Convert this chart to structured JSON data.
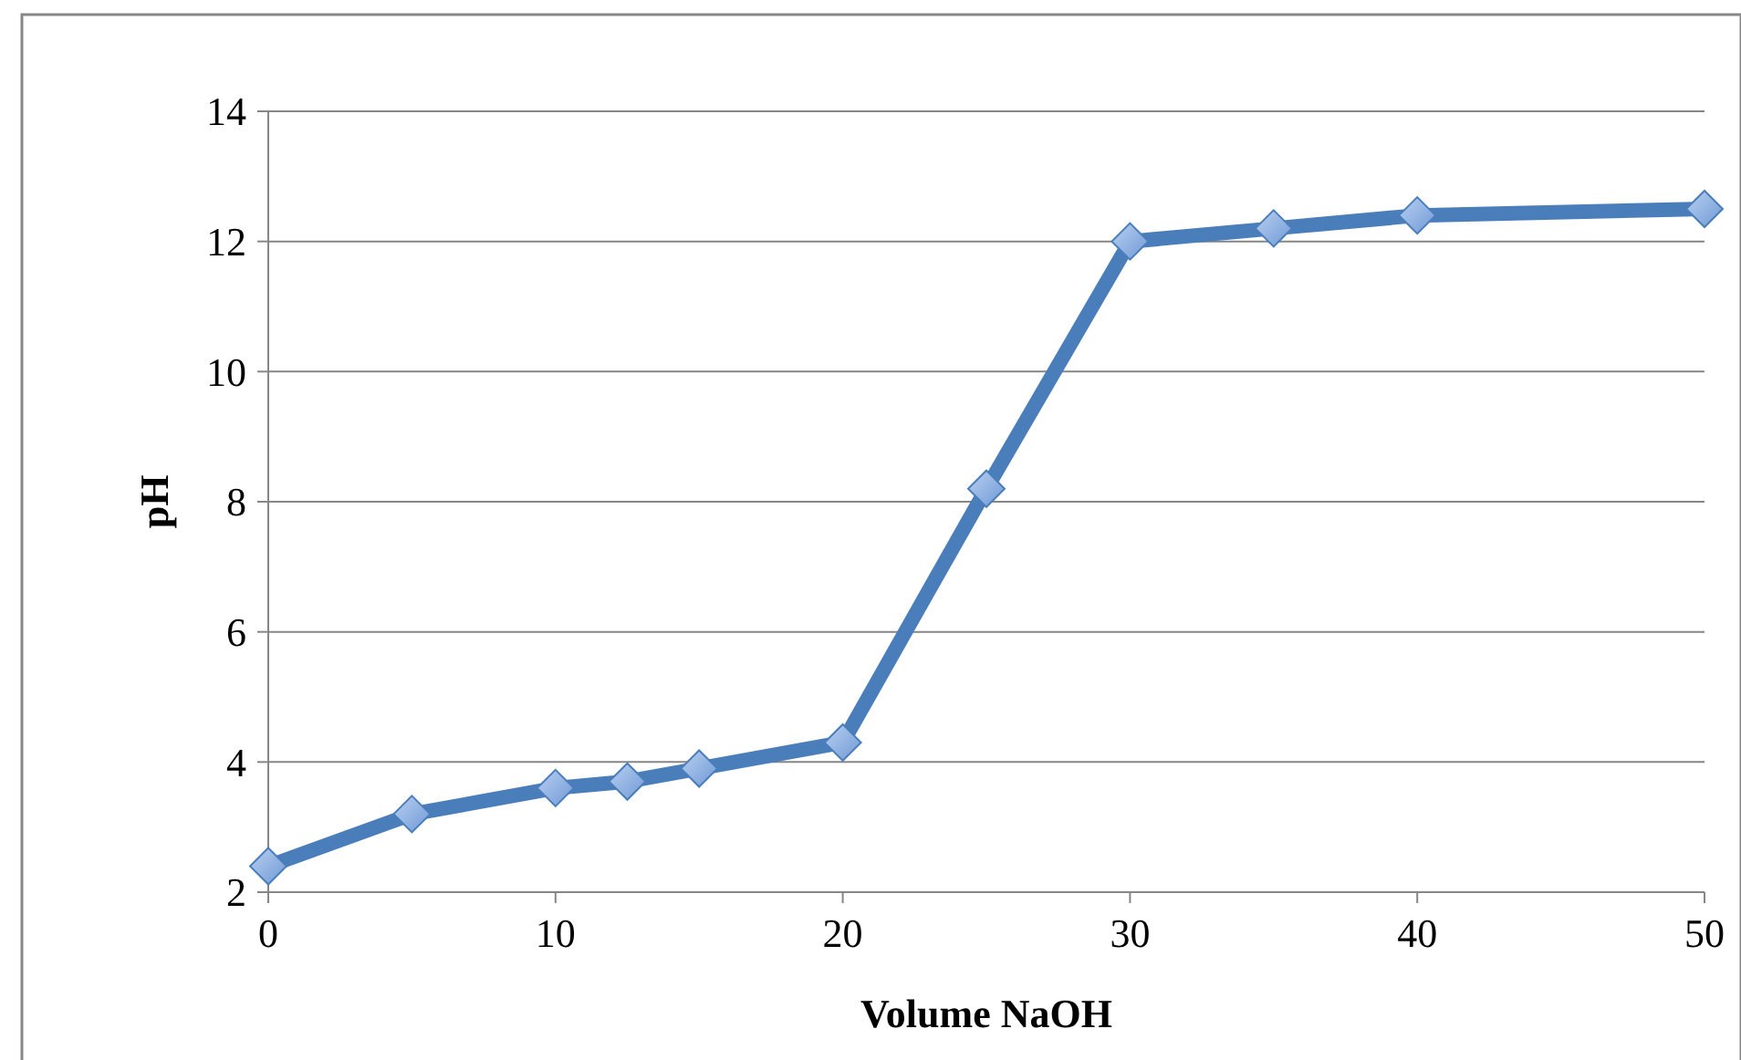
{
  "chart_data": {
    "type": "line",
    "xlabel": "Volume NaOH",
    "ylabel": "pH",
    "x": [
      0,
      5,
      10,
      12.5,
      15,
      20,
      25,
      30,
      35,
      40,
      50
    ],
    "series": [
      {
        "color": "#4a7ebb",
        "values": [
          2.4,
          3.2,
          3.6,
          3.7,
          3.9,
          4.3,
          8.2,
          12.0,
          12.2,
          12.4,
          12.5
        ]
      }
    ],
    "xlim": [
      0,
      50
    ],
    "xticks": [
      0,
      10,
      20,
      30,
      40,
      50
    ],
    "ylim": [
      2,
      14
    ],
    "yticks": [
      2,
      4,
      6,
      8,
      10,
      12,
      14
    ],
    "grid": "y",
    "marker": "diamond",
    "line_style": "solid"
  }
}
